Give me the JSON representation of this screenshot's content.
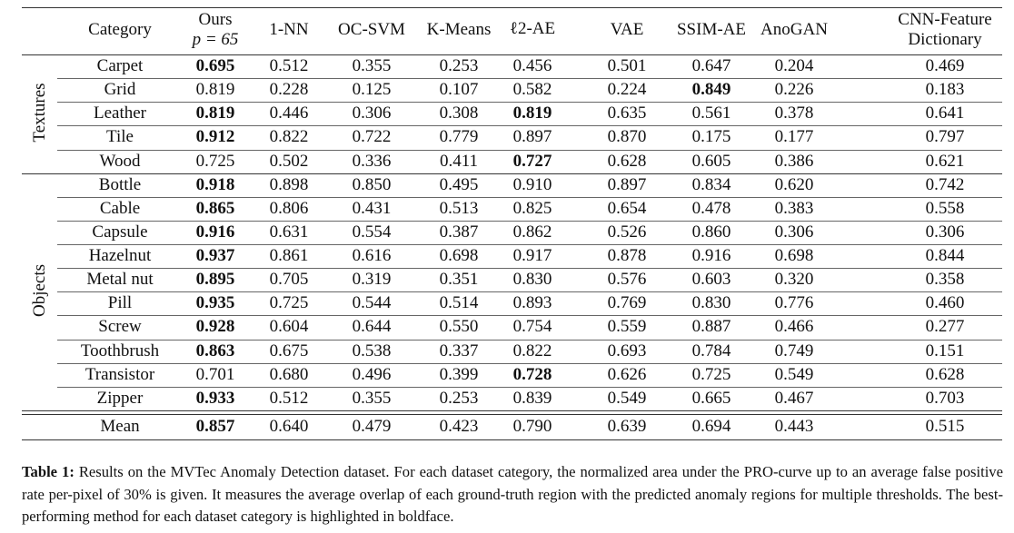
{
  "table": {
    "headers": [
      "Category",
      "Ours",
      "1-NN",
      "OC-SVM",
      "K-Means",
      "ℓ2-AE",
      "VAE",
      "SSIM-AE",
      "AnoGAN",
      "CNN-Feature"
    ],
    "header_sublines": {
      "Ours": "p = 65",
      "CNN-Feature": "Dictionary"
    },
    "groups": [
      {
        "label": "Textures",
        "rows": [
          {
            "category": "Carpet",
            "values": [
              "0.695",
              "0.512",
              "0.355",
              "0.253",
              "0.456",
              "0.501",
              "0.647",
              "0.204",
              "0.469"
            ],
            "bold": [
              0
            ]
          },
          {
            "category": "Grid",
            "values": [
              "0.819",
              "0.228",
              "0.125",
              "0.107",
              "0.582",
              "0.224",
              "0.849",
              "0.226",
              "0.183"
            ],
            "bold": [
              6
            ]
          },
          {
            "category": "Leather",
            "values": [
              "0.819",
              "0.446",
              "0.306",
              "0.308",
              "0.819",
              "0.635",
              "0.561",
              "0.378",
              "0.641"
            ],
            "bold": [
              0,
              4
            ]
          },
          {
            "category": "Tile",
            "values": [
              "0.912",
              "0.822",
              "0.722",
              "0.779",
              "0.897",
              "0.870",
              "0.175",
              "0.177",
              "0.797"
            ],
            "bold": [
              0
            ]
          },
          {
            "category": "Wood",
            "values": [
              "0.725",
              "0.502",
              "0.336",
              "0.411",
              "0.727",
              "0.628",
              "0.605",
              "0.386",
              "0.621"
            ],
            "bold": [
              4
            ]
          }
        ]
      },
      {
        "label": "Objects",
        "rows": [
          {
            "category": "Bottle",
            "values": [
              "0.918",
              "0.898",
              "0.850",
              "0.495",
              "0.910",
              "0.897",
              "0.834",
              "0.620",
              "0.742"
            ],
            "bold": [
              0
            ]
          },
          {
            "category": "Cable",
            "values": [
              "0.865",
              "0.806",
              "0.431",
              "0.513",
              "0.825",
              "0.654",
              "0.478",
              "0.383",
              "0.558"
            ],
            "bold": [
              0
            ]
          },
          {
            "category": "Capsule",
            "values": [
              "0.916",
              "0.631",
              "0.554",
              "0.387",
              "0.862",
              "0.526",
              "0.860",
              "0.306",
              "0.306"
            ],
            "bold": [
              0
            ]
          },
          {
            "category": "Hazelnut",
            "values": [
              "0.937",
              "0.861",
              "0.616",
              "0.698",
              "0.917",
              "0.878",
              "0.916",
              "0.698",
              "0.844"
            ],
            "bold": [
              0
            ]
          },
          {
            "category": "Metal nut",
            "values": [
              "0.895",
              "0.705",
              "0.319",
              "0.351",
              "0.830",
              "0.576",
              "0.603",
              "0.320",
              "0.358"
            ],
            "bold": [
              0
            ]
          },
          {
            "category": "Pill",
            "values": [
              "0.935",
              "0.725",
              "0.544",
              "0.514",
              "0.893",
              "0.769",
              "0.830",
              "0.776",
              "0.460"
            ],
            "bold": [
              0
            ]
          },
          {
            "category": "Screw",
            "values": [
              "0.928",
              "0.604",
              "0.644",
              "0.550",
              "0.754",
              "0.559",
              "0.887",
              "0.466",
              "0.277"
            ],
            "bold": [
              0
            ]
          },
          {
            "category": "Toothbrush",
            "values": [
              "0.863",
              "0.675",
              "0.538",
              "0.337",
              "0.822",
              "0.693",
              "0.784",
              "0.749",
              "0.151"
            ],
            "bold": [
              0
            ]
          },
          {
            "category": "Transistor",
            "values": [
              "0.701",
              "0.680",
              "0.496",
              "0.399",
              "0.728",
              "0.626",
              "0.725",
              "0.549",
              "0.628"
            ],
            "bold": [
              4
            ]
          },
          {
            "category": "Zipper",
            "values": [
              "0.933",
              "0.512",
              "0.355",
              "0.253",
              "0.839",
              "0.549",
              "0.665",
              "0.467",
              "0.703"
            ],
            "bold": [
              0
            ]
          }
        ]
      }
    ],
    "mean": {
      "category": "Mean",
      "values": [
        "0.857",
        "0.640",
        "0.479",
        "0.423",
        "0.790",
        "0.639",
        "0.694",
        "0.443",
        "0.515"
      ],
      "bold": [
        0
      ]
    }
  },
  "caption": {
    "label": "Table 1:",
    "text": "Results on the MVTec Anomaly Detection dataset. For each dataset category, the normalized area under the PRO-curve up to an average false positive rate per-pixel of 30% is given. It measures the average overlap of each ground-truth region with the predicted anomaly regions for multiple thresholds. The best-performing method for each dataset category is highlighted in boldface."
  }
}
